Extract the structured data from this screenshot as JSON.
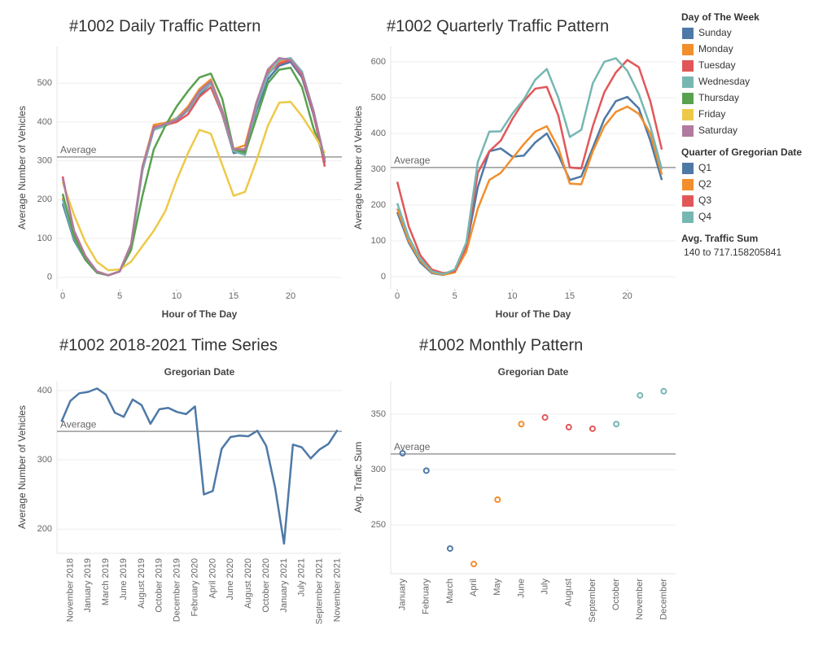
{
  "chart_data": [
    {
      "type": "line",
      "title": "#1002 Daily Traffic Pattern",
      "x_label": "Hour of The Day",
      "y_label": "Average Number of Vehicles",
      "legend_title": "Day of The Week",
      "x": [
        0,
        1,
        2,
        3,
        4,
        5,
        6,
        7,
        8,
        9,
        10,
        11,
        12,
        13,
        14,
        15,
        16,
        17,
        18,
        19,
        20,
        21,
        22,
        23
      ],
      "xlim": [
        -0.5,
        24.5
      ],
      "xticks": [
        0,
        5,
        10,
        15,
        20
      ],
      "ylim": [
        -30,
        595
      ],
      "yticks": [
        0,
        100,
        200,
        300,
        400,
        500
      ],
      "grid": true,
      "average": 310,
      "average_label": "Average",
      "series": [
        {
          "name": "Sunday",
          "color": "#4e79a7",
          "values": [
            190,
            95,
            45,
            12,
            5,
            15,
            80,
            280,
            385,
            390,
            405,
            430,
            470,
            500,
            420,
            320,
            325,
            430,
            510,
            545,
            555,
            515,
            420,
            295
          ]
        },
        {
          "name": "Monday",
          "color": "#f28e2b",
          "values": [
            205,
            105,
            50,
            15,
            5,
            15,
            85,
            285,
            393,
            398,
            410,
            440,
            485,
            510,
            430,
            330,
            340,
            450,
            530,
            555,
            560,
            525,
            430,
            300
          ]
        },
        {
          "name": "Tuesday",
          "color": "#e15759",
          "values": [
            260,
            115,
            50,
            15,
            5,
            15,
            80,
            275,
            388,
            392,
            400,
            420,
            465,
            490,
            420,
            325,
            330,
            440,
            525,
            550,
            560,
            520,
            425,
            285
          ]
        },
        {
          "name": "Wednesday",
          "color": "#76b7b2",
          "values": [
            200,
            100,
            45,
            12,
            5,
            15,
            75,
            275,
            380,
            390,
            410,
            430,
            475,
            500,
            425,
            325,
            315,
            440,
            520,
            560,
            565,
            530,
            430,
            305
          ]
        },
        {
          "name": "Thursday",
          "color": "#59a14f",
          "values": [
            215,
            105,
            45,
            12,
            5,
            15,
            70,
            210,
            330,
            390,
            440,
            480,
            515,
            525,
            460,
            330,
            320,
            410,
            500,
            535,
            540,
            490,
            385,
            305
          ]
        },
        {
          "name": "Friday",
          "color": "#edc948",
          "values": [
            245,
            160,
            90,
            40,
            18,
            20,
            40,
            80,
            120,
            170,
            250,
            320,
            380,
            370,
            290,
            210,
            220,
            300,
            390,
            450,
            452,
            415,
            370,
            320
          ]
        },
        {
          "name": "Saturday",
          "color": "#b07aa1",
          "values": [
            255,
            120,
            55,
            15,
            5,
            15,
            85,
            285,
            385,
            395,
            405,
            435,
            480,
            505,
            430,
            330,
            330,
            450,
            535,
            565,
            560,
            525,
            430,
            300
          ]
        }
      ]
    },
    {
      "type": "line",
      "title": "#1002 Quarterly Traffic Pattern",
      "x_label": "Hour of The Day",
      "y_label": "Average Number of Vehicles",
      "legend_title": "Quarter of Gregorian Date",
      "x": [
        0,
        1,
        2,
        3,
        4,
        5,
        6,
        7,
        8,
        9,
        10,
        11,
        12,
        13,
        14,
        15,
        16,
        17,
        18,
        19,
        20,
        21,
        22,
        23
      ],
      "xlim": [
        -0.57,
        24.2
      ],
      "xticks": [
        0,
        5,
        10,
        15,
        20
      ],
      "ylim": [
        -34,
        643
      ],
      "yticks": [
        0,
        100,
        200,
        300,
        400,
        500,
        600
      ],
      "grid": true,
      "average": 305,
      "average_label": "Average",
      "series": [
        {
          "name": "Q1",
          "color": "#4e79a7",
          "values": [
            180,
            95,
            40,
            10,
            5,
            15,
            80,
            250,
            350,
            358,
            335,
            338,
            375,
            400,
            340,
            270,
            280,
            360,
            440,
            490,
            502,
            470,
            380,
            270
          ]
        },
        {
          "name": "Q2",
          "color": "#f28e2b",
          "values": [
            190,
            100,
            45,
            12,
            5,
            12,
            70,
            190,
            270,
            290,
            330,
            370,
            405,
            420,
            360,
            260,
            258,
            350,
            420,
            460,
            475,
            455,
            400,
            285
          ]
        },
        {
          "name": "Q3",
          "color": "#e15759",
          "values": [
            265,
            140,
            60,
            20,
            10,
            15,
            85,
            290,
            350,
            380,
            440,
            490,
            525,
            530,
            450,
            305,
            302,
            420,
            515,
            570,
            605,
            585,
            490,
            355
          ]
        },
        {
          "name": "Q4",
          "color": "#76b7b2",
          "values": [
            205,
            110,
            50,
            15,
            7,
            20,
            95,
            320,
            405,
            406,
            455,
            495,
            550,
            580,
            500,
            390,
            410,
            540,
            600,
            610,
            575,
            510,
            420,
            300
          ]
        }
      ]
    },
    {
      "type": "line",
      "title": "#1002 2018-2021 Time Series",
      "x_label_top": "Gregorian Date",
      "y_label": "Average Number of Vehicles",
      "categories": [
        null,
        "November 2018",
        null,
        "January 2019",
        null,
        "March 2019",
        null,
        "June 2019",
        null,
        "August 2019",
        null,
        "October 2019",
        null,
        "December 2019",
        null,
        "February 2020",
        null,
        "April 2020",
        null,
        "June 2020",
        null,
        "August 2020",
        null,
        "October 2020",
        null,
        "January 2021",
        null,
        "July 2021",
        null,
        "September 2021",
        null,
        "November 2021"
      ],
      "values": [
        355,
        385,
        396,
        398,
        403,
        394,
        368,
        362,
        387,
        379,
        352,
        373,
        375,
        369,
        366,
        377,
        250,
        255,
        316,
        333,
        335,
        334,
        342,
        320,
        260,
        179,
        322,
        318,
        302,
        315,
        323,
        343
      ],
      "color": "#4e79a7",
      "ylim": [
        165,
        414
      ],
      "yticks": [
        200,
        300,
        400
      ],
      "grid": true,
      "average": 341,
      "average_label": "Average"
    },
    {
      "type": "scatter",
      "title": "#1002 Monthly Pattern",
      "x_label_top": "Gregorian Date",
      "y_label": "Avg. Traffic Sum",
      "categories": [
        "January",
        "February",
        "March",
        "April",
        "May",
        "June",
        "July",
        "August",
        "September",
        "October",
        "November",
        "December"
      ],
      "values": [
        314.7,
        299,
        228.7,
        214.7,
        272.8,
        341,
        347,
        338.2,
        336.8,
        341,
        366.9,
        370.6
      ],
      "colors": [
        "#4e79a7",
        "#4e79a7",
        "#4e79a7",
        "#f28e2b",
        "#f28e2b",
        "#f28e2b",
        "#e15759",
        "#e15759",
        "#e15759",
        "#76b7b2",
        "#76b7b2",
        "#76b7b2"
      ],
      "ylim": [
        206,
        380
      ],
      "yticks": [
        250,
        300,
        350
      ],
      "grid": true,
      "average": 314,
      "average_label": "Average",
      "size_legend_title": "Avg. Traffic Sum",
      "size_legend_range": "140 to 717.158205841"
    }
  ]
}
